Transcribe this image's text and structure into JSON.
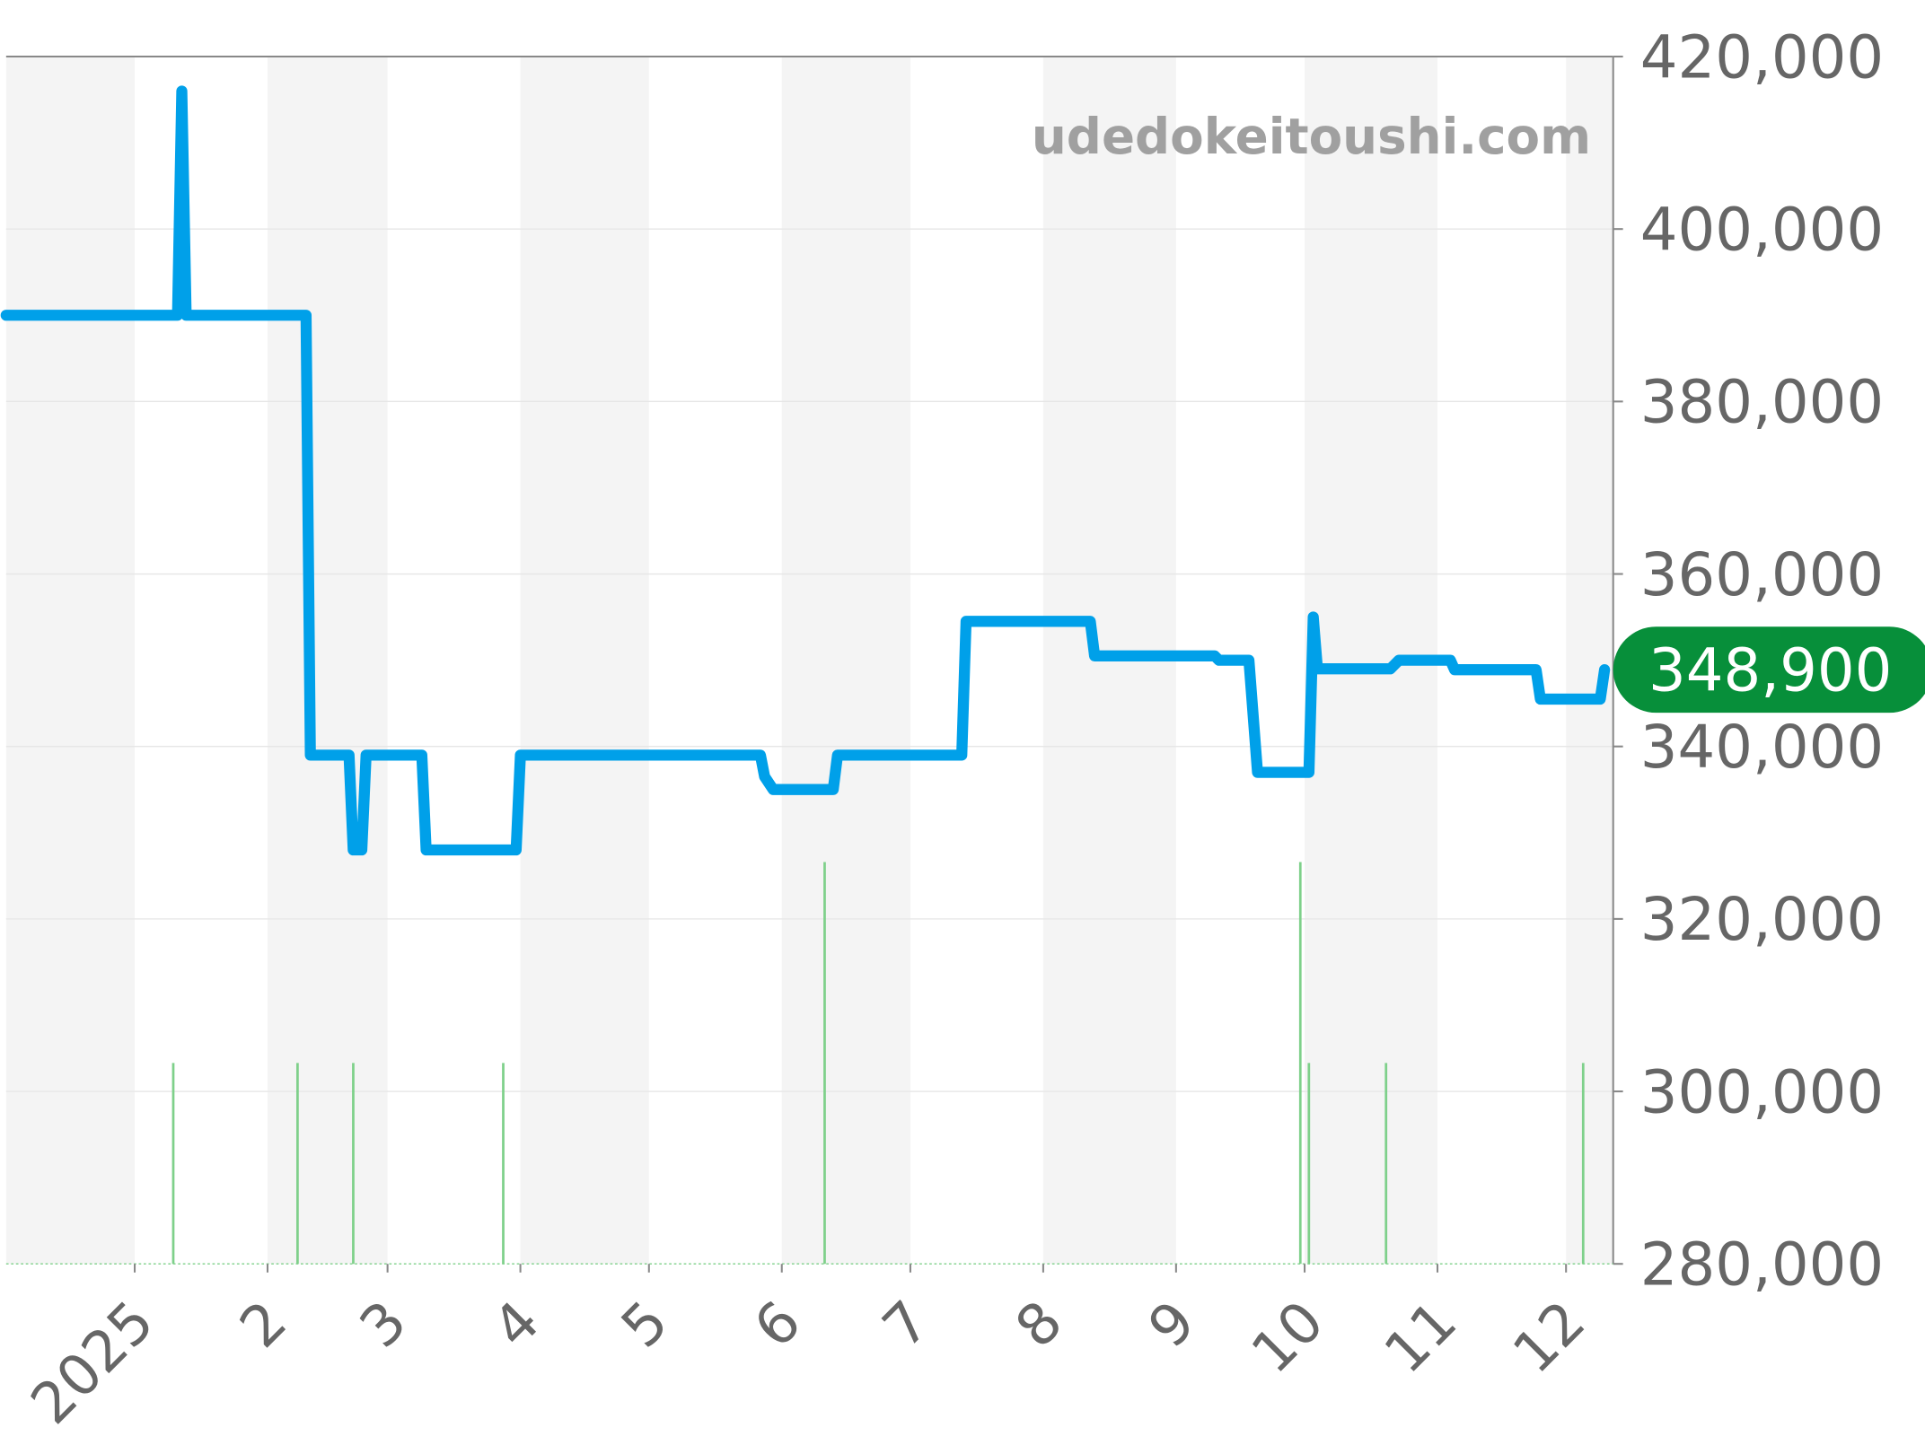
{
  "chart_data": {
    "type": "line",
    "title": "",
    "xlabel": "",
    "ylabel": "",
    "watermark": "udedokeitoushi.com",
    "xlim": [
      "2024-12-02",
      "2025-12-12"
    ],
    "ylim": [
      280000,
      420000
    ],
    "y_ticks": [
      "420,000",
      "400,000",
      "380,000",
      "360,000",
      "340,000",
      "320,000",
      "300,000",
      "280,000"
    ],
    "y_tick_values": [
      420000,
      400000,
      380000,
      360000,
      340000,
      320000,
      300000,
      280000
    ],
    "x_ticks": [
      {
        "label": "2025",
        "date": "2025-01-01"
      },
      {
        "label": "2",
        "date": "2025-02-01"
      },
      {
        "label": "3",
        "date": "2025-03-01"
      },
      {
        "label": "4",
        "date": "2025-04-01"
      },
      {
        "label": "5",
        "date": "2025-05-01"
      },
      {
        "label": "6",
        "date": "2025-06-01"
      },
      {
        "label": "7",
        "date": "2025-07-01"
      },
      {
        "label": "8",
        "date": "2025-08-01"
      },
      {
        "label": "9",
        "date": "2025-09-01"
      },
      {
        "label": "10",
        "date": "2025-10-01"
      },
      {
        "label": "11",
        "date": "2025-11-01"
      },
      {
        "label": "12",
        "date": "2025-12-01"
      }
    ],
    "grid": true,
    "alternating_month_bands": true,
    "last_value_label": "348,900",
    "colors": {
      "line": "#00a0e9",
      "volume": "#7ed08a",
      "last_badge": "#078f3a",
      "band": "#f4f4f4",
      "grid": "#e6e6e6",
      "axis": "#888888"
    },
    "series": [
      {
        "points": [
          [
            "2024-12-02",
            390000
          ],
          [
            "2025-01-11",
            390000
          ],
          [
            "2025-01-12",
            416000
          ],
          [
            "2025-01-13",
            390000
          ],
          [
            "2025-02-10",
            390000
          ],
          [
            "2025-02-11",
            339000
          ],
          [
            "2025-02-20",
            339000
          ],
          [
            "2025-02-21",
            328000
          ],
          [
            "2025-02-23",
            328000
          ],
          [
            "2025-02-24",
            339000
          ],
          [
            "2025-03-09",
            339000
          ],
          [
            "2025-03-10",
            328000
          ],
          [
            "2025-03-31",
            328000
          ],
          [
            "2025-04-01",
            339000
          ],
          [
            "2025-05-27",
            339000
          ],
          [
            "2025-05-28",
            336500
          ],
          [
            "2025-05-30",
            335000
          ],
          [
            "2025-06-13",
            335000
          ],
          [
            "2025-06-14",
            339000
          ],
          [
            "2025-07-13",
            339000
          ],
          [
            "2025-07-14",
            354500
          ],
          [
            "2025-08-12",
            354500
          ],
          [
            "2025-08-13",
            350500
          ],
          [
            "2025-09-10",
            350500
          ],
          [
            "2025-09-11",
            350000
          ],
          [
            "2025-09-18",
            350000
          ],
          [
            "2025-09-20",
            337000
          ],
          [
            "2025-10-02",
            337000
          ],
          [
            "2025-10-03",
            355000
          ],
          [
            "2025-10-04",
            349000
          ],
          [
            "2025-10-21",
            349000
          ],
          [
            "2025-10-23",
            350000
          ],
          [
            "2025-11-04",
            350000
          ],
          [
            "2025-11-05",
            348900
          ],
          [
            "2025-11-24",
            348900
          ],
          [
            "2025-11-25",
            345500
          ],
          [
            "2025-12-09",
            345500
          ],
          [
            "2025-12-10",
            348900
          ]
        ]
      }
    ],
    "volume_markers": [
      [
        "2025-01-10",
        1
      ],
      [
        "2025-02-08",
        1
      ],
      [
        "2025-02-21",
        1
      ],
      [
        "2025-03-28",
        1
      ],
      [
        "2025-06-11",
        2
      ],
      [
        "2025-09-30",
        2
      ],
      [
        "2025-10-02",
        1
      ],
      [
        "2025-10-20",
        1
      ],
      [
        "2025-12-05",
        1
      ]
    ]
  }
}
